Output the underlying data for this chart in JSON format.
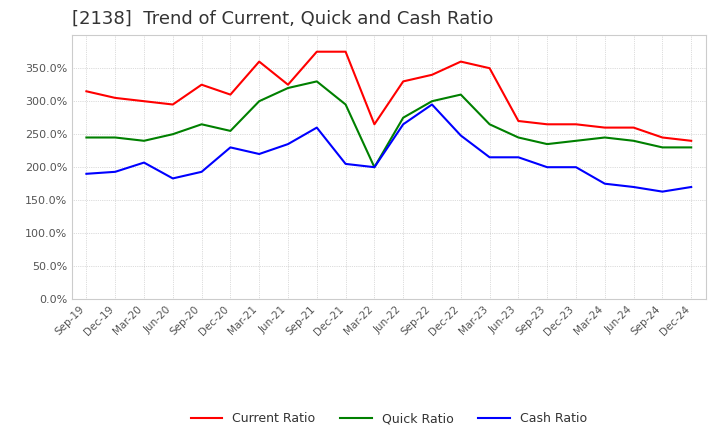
{
  "title": "[2138]  Trend of Current, Quick and Cash Ratio",
  "title_fontsize": 13,
  "background_color": "#ffffff",
  "plot_background_color": "#ffffff",
  "grid_color": "#aaaaaa",
  "x_labels": [
    "Sep-19",
    "Dec-19",
    "Mar-20",
    "Jun-20",
    "Sep-20",
    "Dec-20",
    "Mar-21",
    "Jun-21",
    "Sep-21",
    "Dec-21",
    "Mar-22",
    "Jun-22",
    "Sep-22",
    "Dec-22",
    "Mar-23",
    "Jun-23",
    "Sep-23",
    "Dec-23",
    "Mar-24",
    "Jun-24",
    "Sep-24",
    "Dec-24"
  ],
  "current_ratio": [
    315,
    305,
    300,
    295,
    325,
    310,
    360,
    325,
    375,
    375,
    265,
    330,
    340,
    360,
    350,
    270,
    265,
    265,
    260,
    260,
    245,
    240
  ],
  "quick_ratio": [
    245,
    245,
    240,
    250,
    265,
    255,
    300,
    320,
    330,
    295,
    200,
    275,
    300,
    310,
    265,
    245,
    235,
    240,
    245,
    240,
    230,
    230
  ],
  "cash_ratio": [
    190,
    193,
    207,
    183,
    193,
    230,
    220,
    235,
    260,
    205,
    200,
    265,
    295,
    248,
    215,
    215,
    200,
    200,
    175,
    170,
    163,
    170
  ],
  "current_color": "#ff0000",
  "quick_color": "#008000",
  "cash_color": "#0000ff",
  "ylim": [
    0,
    400
  ],
  "yticks": [
    0,
    50,
    100,
    150,
    200,
    250,
    300,
    350
  ]
}
